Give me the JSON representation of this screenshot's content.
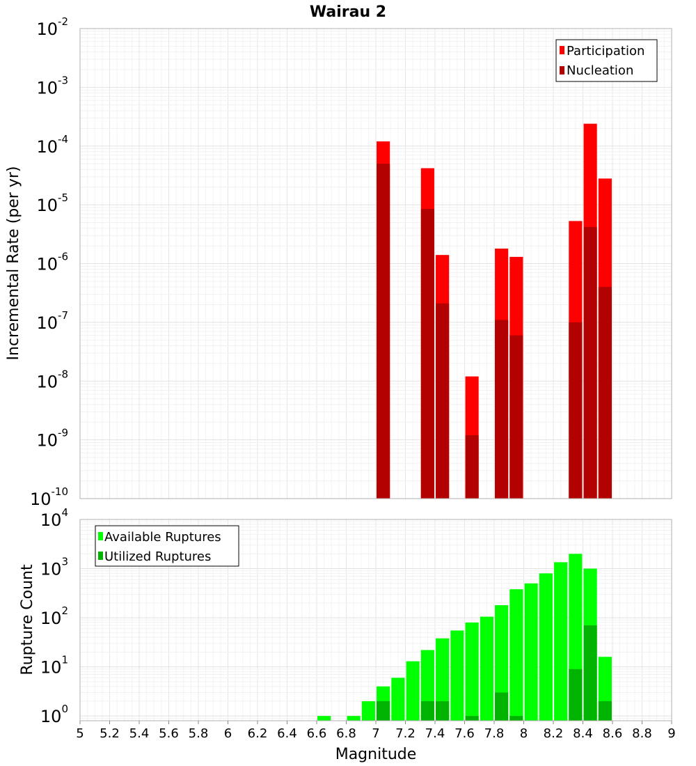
{
  "chart_data": [
    {
      "type": "bar",
      "title": "Wairau 2",
      "xlabel": "",
      "ylabel": "Incremental Rate (per yr)",
      "yscale": "log",
      "ylim": [
        1e-10,
        0.01
      ],
      "xlim": [
        5,
        9
      ],
      "bar_width": 0.09,
      "legend_position": "top-right",
      "series": [
        {
          "name": "Participation",
          "color": "#ff0000",
          "x": [
            7.05,
            7.35,
            7.45,
            7.65,
            7.85,
            7.95,
            8.35,
            8.45,
            8.55
          ],
          "values": [
            0.00012,
            4.2e-05,
            1.4e-06,
            1.2e-08,
            1.8e-06,
            1.3e-06,
            5.3e-06,
            0.00024,
            2.8e-05
          ]
        },
        {
          "name": "Nucleation",
          "color": "#b30000",
          "x": [
            7.05,
            7.35,
            7.45,
            7.65,
            7.85,
            7.95,
            8.35,
            8.45,
            8.55
          ],
          "values": [
            5e-05,
            8.5e-06,
            2.1e-07,
            1.2e-09,
            1.1e-07,
            6e-08,
            1e-07,
            4.2e-06,
            4e-07
          ]
        }
      ]
    },
    {
      "type": "bar",
      "title": "",
      "xlabel": "Magnitude",
      "ylabel": "Rupture Count",
      "yscale": "log",
      "ylim": [
        0.8,
        10000
      ],
      "xlim": [
        5,
        9
      ],
      "bar_width": 0.09,
      "legend_position": "top-left",
      "x_ticks": [
        "5",
        "5.2",
        "5.4",
        "5.6",
        "5.8",
        "6",
        "6.2",
        "6.4",
        "6.6",
        "6.8",
        "7",
        "7.2",
        "7.4",
        "7.6",
        "7.8",
        "8",
        "8.2",
        "8.4",
        "8.6",
        "8.8",
        "9"
      ],
      "series": [
        {
          "name": "Available Ruptures",
          "color": "#00ff00",
          "x": [
            6.65,
            6.85,
            6.95,
            7.05,
            7.15,
            7.25,
            7.35,
            7.45,
            7.55,
            7.65,
            7.75,
            7.85,
            7.95,
            8.05,
            8.15,
            8.25,
            8.35,
            8.45,
            8.55
          ],
          "values": [
            1,
            1,
            2,
            4,
            6,
            13,
            22,
            38,
            55,
            80,
            105,
            180,
            380,
            500,
            800,
            1350,
            2000,
            1000,
            16
          ]
        },
        {
          "name": "Utilized Ruptures",
          "color": "#00b300",
          "x": [
            7.05,
            7.35,
            7.45,
            7.65,
            7.85,
            7.95,
            8.35,
            8.45,
            8.55
          ],
          "values": [
            2,
            2,
            2,
            1,
            3,
            1,
            9,
            70,
            2
          ]
        }
      ]
    }
  ]
}
